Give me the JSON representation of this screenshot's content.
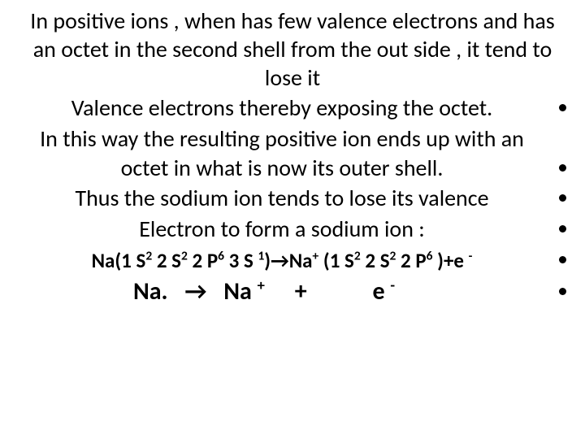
{
  "text_color": "#000000",
  "background_color": "#ffffff",
  "font_family": "Calibri",
  "body_fontsize_pt": 28,
  "intro": "In positive ions , when has few valence electrons and has an octet in the second shell from the out side , it tend to lose it",
  "bullets": {
    "b1": "Valence electrons thereby exposing the octet.",
    "b2": "In this way the resulting positive ion ends up with an octet in what is now its outer shell.",
    "b3": "Thus the sodium ion tends to lose its valence",
    "b4": "Electron to form a sodium ion :"
  },
  "config_line": {
    "lhs_base": "Na(1 S",
    "s1_exp": "2",
    "s2": " 2 S",
    "s2_exp": "2",
    "p2": " 2 P",
    "p2_exp": "6",
    "s3": " 3 S ",
    "s3_exp": "1",
    "arrow": ")→Na",
    "na_charge": "+",
    "rhs_open": " (1 S",
    "r_s1_exp": "2",
    "r_s2": " 2 S",
    "r_s2_exp": "2",
    "r_p2": " 2 P",
    "r_p2_exp": "6",
    "close": " )+e ",
    "e_charge": "-"
  },
  "equation": {
    "na": "Na.",
    "arrow": "→",
    "na_plus_base": "Na ",
    "na_plus_sup": "+",
    "plus": "+",
    "e_base": "e ",
    "e_sup": "-"
  }
}
